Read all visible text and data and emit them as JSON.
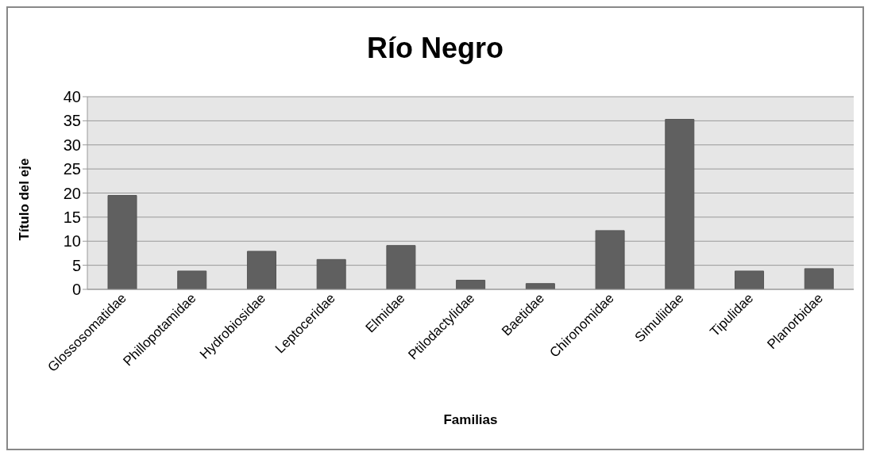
{
  "chart_data": {
    "type": "bar",
    "title": "Río Negro",
    "xlabel": "Familias",
    "ylabel": "Título del eje",
    "categories": [
      "Glossosomatidae",
      "Phillopotamidae",
      "Hydrobiosidae",
      "Leptoceridae",
      "Elmidae",
      "Ptilodactylidae",
      "Baetidae",
      "Chironomidae",
      "Simuliidae",
      "Tipulidae",
      "Planorbidae"
    ],
    "values": [
      19.5,
      3.8,
      7.9,
      6.2,
      9.1,
      1.9,
      1.2,
      12.2,
      35.3,
      3.8,
      4.3
    ],
    "color": "#606060",
    "ylim": [
      0,
      40
    ],
    "yticks": [
      0,
      5,
      10,
      15,
      20,
      25,
      30,
      35,
      40
    ],
    "grid": "y"
  }
}
